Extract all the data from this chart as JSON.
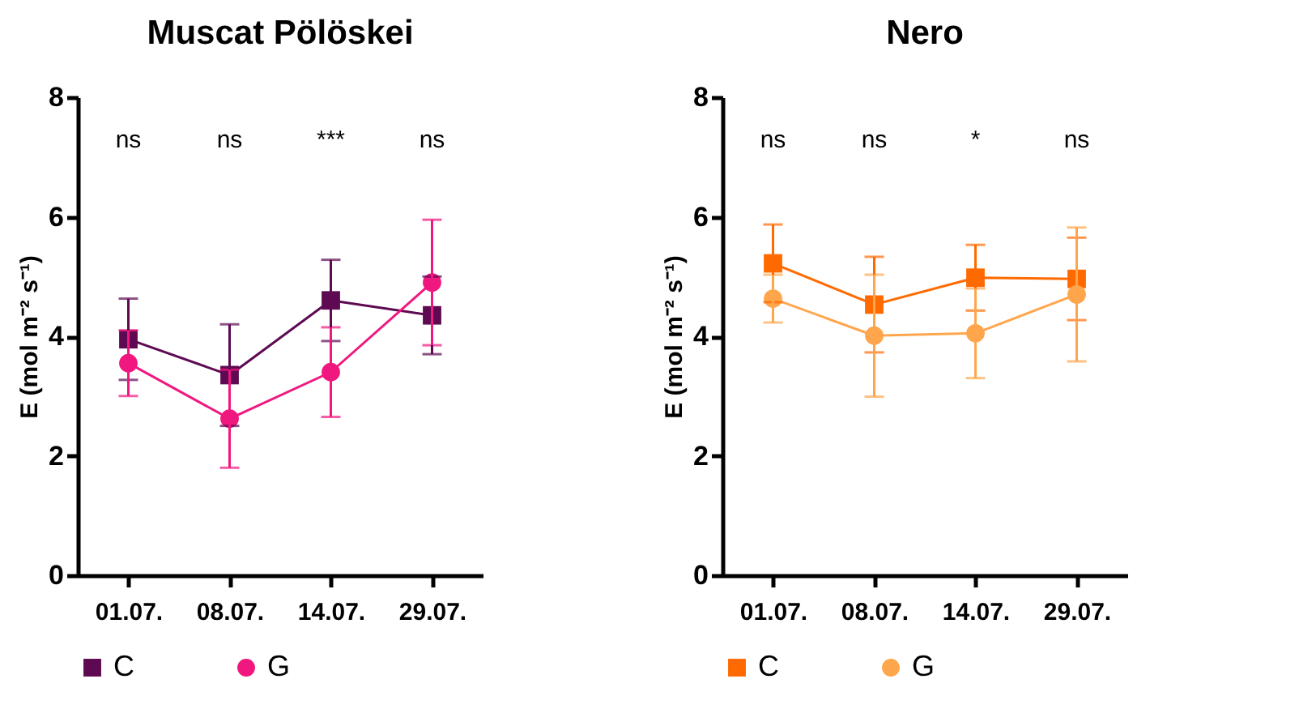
{
  "chart_data": [
    {
      "type": "line",
      "title": "Muscat Pölöskei",
      "ylabel": "E (mol m⁻² s⁻¹)",
      "categories": [
        "01.07.",
        "08.07.",
        "14.07.",
        "29.07."
      ],
      "ylim": [
        0,
        8
      ],
      "yticks": [
        0,
        2,
        4,
        6,
        8
      ],
      "legend": "bottom",
      "series": [
        {
          "name": "C",
          "color": "#5e0a52",
          "marker": "square",
          "values": [
            3.95,
            3.35,
            4.6,
            4.35
          ],
          "errors": [
            0.68,
            0.85,
            0.68,
            0.65
          ]
        },
        {
          "name": "G",
          "color": "#f0177f",
          "marker": "circle",
          "values": [
            3.55,
            2.62,
            3.4,
            4.9
          ],
          "errors": [
            0.55,
            0.82,
            0.75,
            1.05
          ]
        }
      ],
      "annotations": [
        "ns",
        "ns",
        "***",
        "ns"
      ]
    },
    {
      "type": "line",
      "title": "Nero",
      "ylabel": "E (mol m⁻² s⁻¹)",
      "categories": [
        "01.07.",
        "08.07.",
        "14.07.",
        "29.07."
      ],
      "ylim": [
        0,
        8
      ],
      "yticks": [
        0,
        2,
        4,
        6,
        8
      ],
      "legend": "bottom",
      "series": [
        {
          "name": "C",
          "color": "#ff6a00",
          "marker": "square",
          "values": [
            5.22,
            4.53,
            4.98,
            4.96
          ],
          "errors": [
            0.65,
            0.8,
            0.55,
            0.69
          ]
        },
        {
          "name": "G",
          "color": "#ffa64d",
          "marker": "circle",
          "values": [
            4.63,
            4.01,
            4.05,
            4.7
          ],
          "errors": [
            0.4,
            1.02,
            0.75,
            1.12
          ]
        }
      ],
      "annotations": [
        "ns",
        "ns",
        "*",
        "ns"
      ]
    }
  ]
}
